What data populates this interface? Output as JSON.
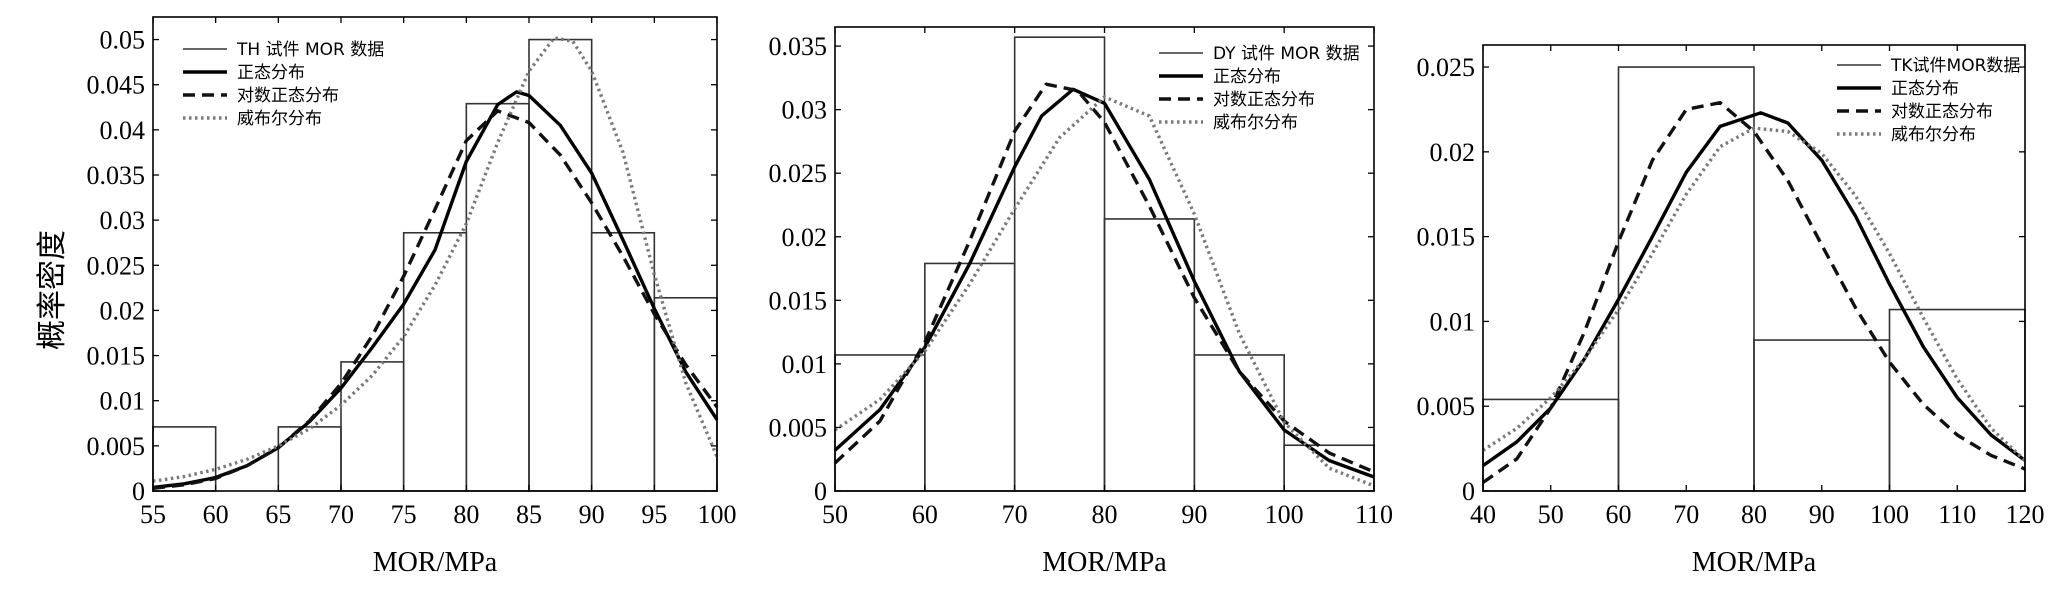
{
  "y_label": "概率密度",
  "x_label": "MOR/MPa",
  "legend_common": [
    "正态分布",
    "对数正态分布",
    "威布尔分布"
  ],
  "chart_data": [
    {
      "type": "bar",
      "legend_title": "TH 试件 MOR 数据",
      "xlabel": "MOR/MPa",
      "ylabel": "概率密度",
      "xlim": [
        55,
        100
      ],
      "ylim": [
        0,
        0.0525
      ],
      "xticks": [
        55,
        60,
        65,
        70,
        75,
        80,
        85,
        90,
        95,
        100
      ],
      "yticks": [
        0,
        0.005,
        0.01,
        0.015,
        0.02,
        0.025,
        0.03,
        0.035,
        0.04,
        0.045,
        0.05
      ],
      "bin_edges": [
        55,
        60,
        65,
        70,
        75,
        80,
        85,
        90,
        95,
        100
      ],
      "values": [
        0.0071,
        0.0,
        0.0071,
        0.0143,
        0.0286,
        0.0429,
        0.05,
        0.0286,
        0.0214
      ],
      "series": [
        {
          "name": "正态分布",
          "style": "solid",
          "x": [
            55,
            57.5,
            60,
            62.5,
            65,
            67.5,
            70,
            72.5,
            75,
            77.5,
            80,
            82.5,
            84,
            85,
            87.5,
            90,
            92.5,
            95,
            97.5,
            100
          ],
          "y": [
            0.0004,
            0.0008,
            0.0015,
            0.0028,
            0.0048,
            0.0077,
            0.0114,
            0.0159,
            0.0207,
            0.0267,
            0.0365,
            0.0428,
            0.0442,
            0.0438,
            0.0405,
            0.0352,
            0.0278,
            0.0202,
            0.0132,
            0.0079
          ]
        },
        {
          "name": "对数正态分布",
          "style": "dashed",
          "x": [
            55,
            57.5,
            60,
            62.5,
            65,
            67.5,
            70,
            72.5,
            75,
            77.5,
            80,
            82.5,
            85,
            87.5,
            90,
            92.5,
            95,
            97.5,
            100
          ],
          "y": [
            0.0003,
            0.0007,
            0.0014,
            0.0028,
            0.0048,
            0.0078,
            0.0119,
            0.0172,
            0.0238,
            0.0312,
            0.0388,
            0.0421,
            0.0408,
            0.0372,
            0.0319,
            0.026,
            0.0196,
            0.014,
            0.0093
          ]
        },
        {
          "name": "威布尔分布",
          "style": "dotted",
          "x": [
            55,
            57.5,
            60,
            62.5,
            65,
            67.5,
            70,
            72.5,
            75,
            77.5,
            80,
            82.5,
            85,
            87,
            88.5,
            90,
            92.5,
            95,
            97.5,
            100
          ],
          "y": [
            0.0011,
            0.0016,
            0.0024,
            0.0035,
            0.005,
            0.0069,
            0.0095,
            0.0128,
            0.0171,
            0.0228,
            0.0296,
            0.0386,
            0.0465,
            0.0502,
            0.0498,
            0.0465,
            0.0375,
            0.024,
            0.012,
            0.0038
          ]
        }
      ]
    },
    {
      "type": "bar",
      "legend_title": "DY 试件 MOR 数据",
      "xlabel": "MOR/MPa",
      "ylabel": "",
      "xlim": [
        50,
        110
      ],
      "ylim": [
        0,
        0.0365
      ],
      "xticks": [
        50,
        60,
        70,
        80,
        90,
        100,
        110
      ],
      "yticks": [
        0,
        0.005,
        0.01,
        0.015,
        0.02,
        0.025,
        0.03,
        0.035
      ],
      "bin_edges": [
        50,
        60,
        70,
        80,
        90,
        100,
        110
      ],
      "values": [
        0.0107,
        0.0179,
        0.0357,
        0.0214,
        0.0107,
        0.0036
      ],
      "series": [
        {
          "name": "正态分布",
          "style": "solid",
          "x": [
            50,
            55,
            60,
            65,
            70,
            73,
            76.5,
            80,
            85,
            90,
            95,
            100,
            105,
            110
          ],
          "y": [
            0.0032,
            0.0064,
            0.0113,
            0.0179,
            0.0255,
            0.0295,
            0.0316,
            0.0305,
            0.0245,
            0.0165,
            0.0094,
            0.0048,
            0.0024,
            0.0011
          ]
        },
        {
          "name": "对数正态分布",
          "style": "dashed",
          "x": [
            50,
            55,
            60,
            65,
            70,
            73.5,
            77,
            80,
            85,
            90,
            95,
            100,
            105,
            110
          ],
          "y": [
            0.0022,
            0.0055,
            0.0117,
            0.0197,
            0.0283,
            0.032,
            0.0315,
            0.029,
            0.0224,
            0.0152,
            0.0094,
            0.0055,
            0.003,
            0.0015
          ]
        },
        {
          "name": "威布尔分布",
          "style": "dotted",
          "x": [
            50,
            55,
            60,
            65,
            70,
            75,
            80,
            85,
            90,
            95,
            100,
            105,
            110
          ],
          "y": [
            0.0048,
            0.0072,
            0.011,
            0.0163,
            0.0222,
            0.0278,
            0.031,
            0.0295,
            0.0218,
            0.0124,
            0.0054,
            0.0018,
            0.0004
          ]
        }
      ]
    },
    {
      "type": "bar",
      "legend_title": "TK试件MOR数据",
      "xlabel": "MOR/MPa",
      "ylabel": "",
      "xlim": [
        40,
        120
      ],
      "ylim": [
        0,
        0.0263
      ],
      "xticks": [
        40,
        50,
        60,
        70,
        80,
        90,
        100,
        110,
        120
      ],
      "yticks": [
        0,
        0.005,
        0.01,
        0.015,
        0.02,
        0.025
      ],
      "bin_edges": [
        40,
        60,
        80,
        100,
        120
      ],
      "values": [
        0.0054,
        0.025,
        0.0089,
        0.0107
      ],
      "series": [
        {
          "name": "正态分布",
          "style": "solid",
          "x": [
            40,
            45,
            50,
            55,
            60,
            65,
            70,
            75,
            81,
            85,
            90,
            95,
            100,
            105,
            110,
            115,
            120
          ],
          "y": [
            0.0015,
            0.0029,
            0.0049,
            0.0078,
            0.0113,
            0.015,
            0.0188,
            0.0215,
            0.0223,
            0.0217,
            0.0195,
            0.0162,
            0.0122,
            0.0085,
            0.0055,
            0.0033,
            0.0018
          ]
        },
        {
          "name": "对数正态分布",
          "style": "dashed",
          "x": [
            40,
            45,
            50,
            55,
            60,
            65,
            70,
            75,
            80,
            85,
            90,
            95,
            100,
            105,
            110,
            115,
            120
          ],
          "y": [
            0.0005,
            0.0019,
            0.0049,
            0.0094,
            0.0147,
            0.0195,
            0.0225,
            0.0229,
            0.0212,
            0.0183,
            0.0145,
            0.0108,
            0.0076,
            0.0051,
            0.0033,
            0.0021,
            0.0013
          ]
        },
        {
          "name": "威布尔分布",
          "style": "dotted",
          "x": [
            40,
            45,
            50,
            55,
            60,
            65,
            70,
            75,
            80,
            85,
            90,
            95,
            100,
            105,
            110,
            115,
            120
          ],
          "y": [
            0.0024,
            0.0037,
            0.0055,
            0.0078,
            0.0107,
            0.014,
            0.0175,
            0.0203,
            0.0214,
            0.0212,
            0.0199,
            0.0174,
            0.014,
            0.0102,
            0.0066,
            0.0037,
            0.0018
          ]
        }
      ]
    }
  ]
}
